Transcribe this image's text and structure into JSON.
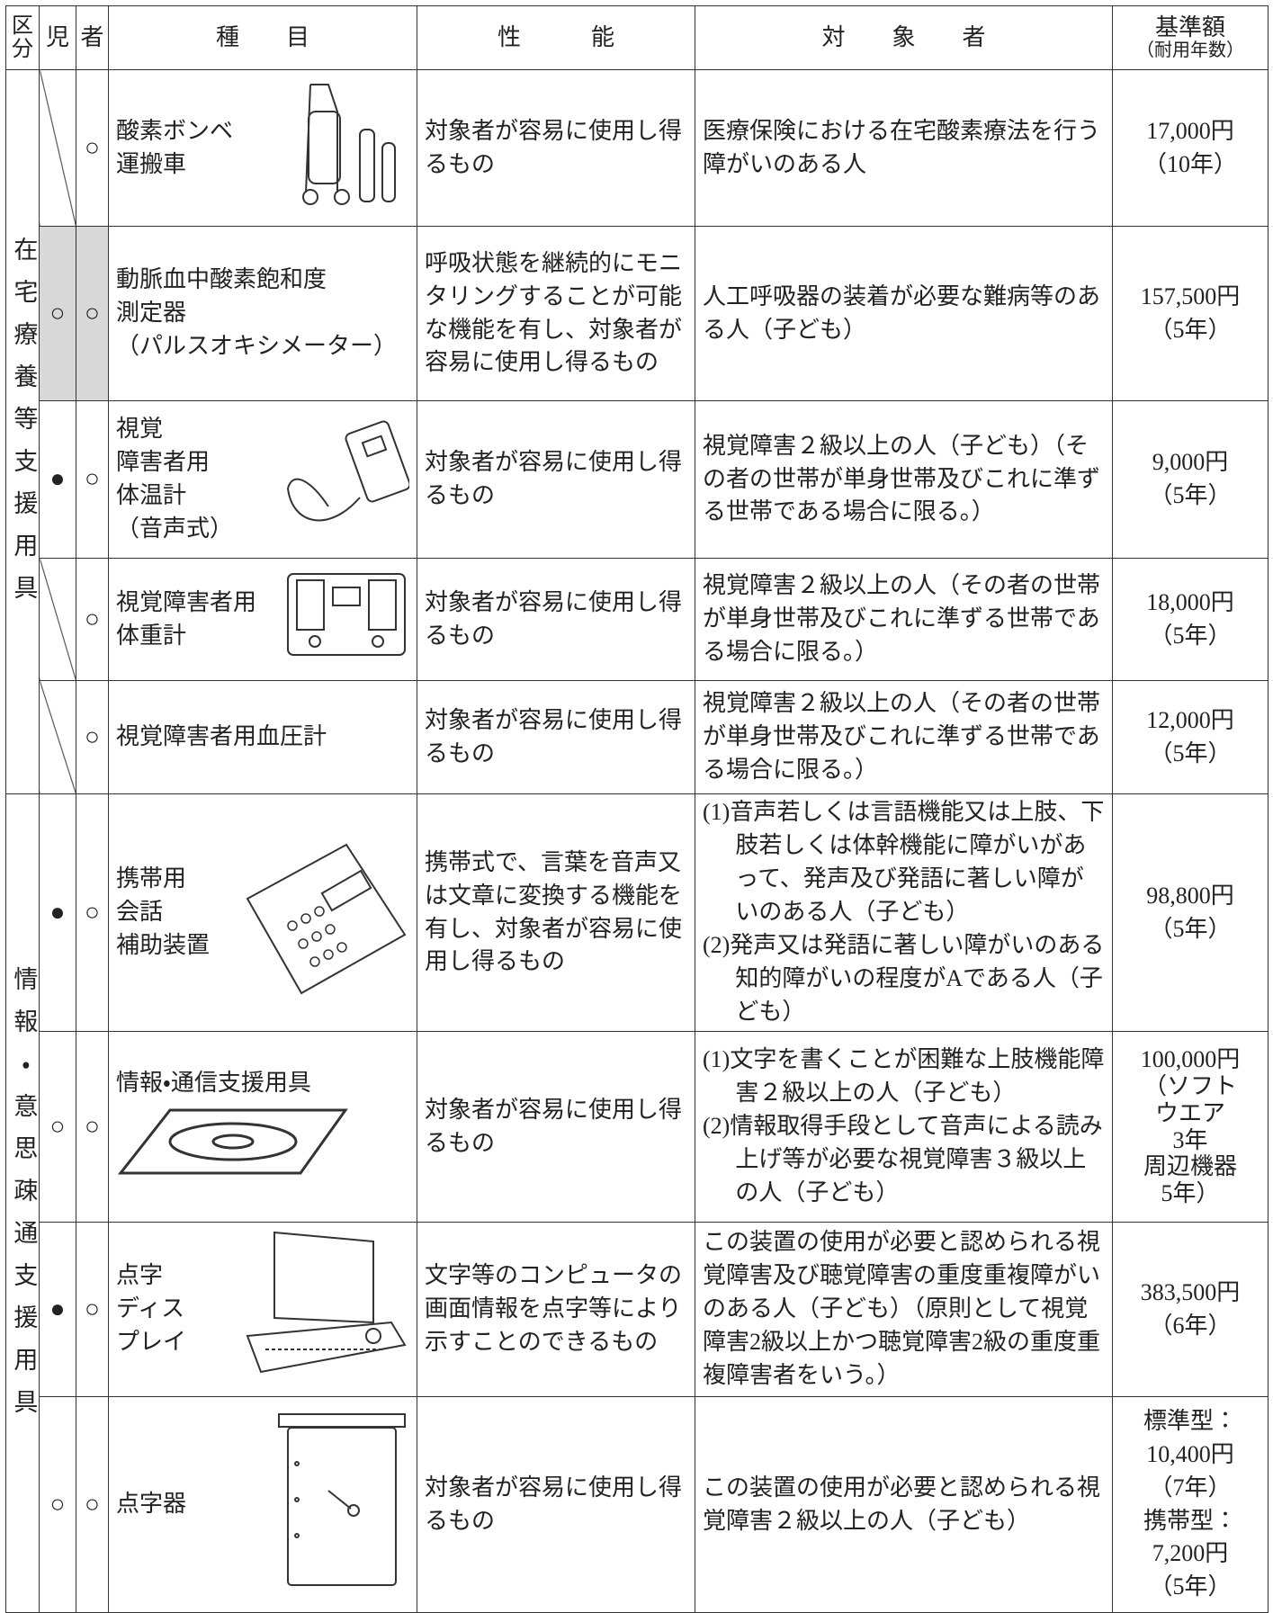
{
  "header": {
    "section": "区分",
    "child": "児",
    "adult": "者",
    "item": "種　　目",
    "performance": "性　　　能",
    "target": "対　　象　　者",
    "amount": "基準額",
    "amount_note": "（耐用年数）"
  },
  "sections": [
    {
      "label": "在宅療養等支援用具",
      "rows": [
        {
          "adult": "○",
          "item": "酸素ボンベ\n運搬車",
          "performance": "対象者が容易に使用し得るもの",
          "target": "医療保険における在宅酸素療法を行う障がいのある人",
          "amount": "17,000円\n（10年）"
        },
        {
          "child": "○",
          "adult": "○",
          "shaded": true,
          "item": "動脈血中酸素飽和度\n測定器\n（パルスオキシメーター）",
          "performance": "呼吸状態を継続的にモニタリングすることが可能な機能を有し、対象者が容易に使用し得るもの",
          "target": "人工呼吸器の装着が必要な難病等のある人（子ども）",
          "amount": "157,500円\n（5年）"
        },
        {
          "child": "●",
          "adult": "○",
          "item": "視覚\n障害者用\n体温計\n（音声式）",
          "performance": "対象者が容易に使用し得るもの",
          "target": "視覚障害２級以上の人（子ども）（その者の世帯が単身世帯及びこれに準ずる世帯である場合に限る。）",
          "amount": "9,000円\n（5年）"
        },
        {
          "adult": "○",
          "item": "視覚障害者用\n体重計",
          "performance": "対象者が容易に使用し得るもの",
          "target": "視覚障害２級以上の人（その者の世帯が単身世帯及びこれに準ずる世帯である場合に限る。）",
          "amount": "18,000円\n（5年）"
        },
        {
          "adult": "○",
          "item": "視覚障害者用血圧計",
          "performance": "対象者が容易に使用し得るもの",
          "target": "視覚障害２級以上の人（その者の世帯が単身世帯及びこれに準ずる世帯である場合に限る。）",
          "amount": "12,000円\n（5年）"
        }
      ]
    },
    {
      "label": "情報・意思疎通支援用具",
      "rows": [
        {
          "child": "●",
          "adult": "○",
          "item": "携帯用\n会話\n補助装置",
          "performance": "携帯式で、言葉を音声又は文章に変換する機能を有し、対象者が容易に使用し得るもの",
          "target": [
            "(1)音声若しくは言語機能又は上肢、下肢若しくは体幹機能に障がいがあって、発声及び発語に著しい障がいのある人（子ども）",
            "(2)発声又は発語に著しい障がいのある知的障がいの程度がAである人（子ども）"
          ],
          "amount": "98,800円\n（5年）"
        },
        {
          "child": "○",
          "adult": "○",
          "item": "情報・通信支援用具",
          "performance": "対象者が容易に使用し得るもの",
          "target": [
            "(1)文字を書くことが困難な上肢機能障害２級以上の人（子ども）",
            "(2)情報取得手段として音声による読み上げ等が必要な視覚障害３級以上の人（子ども）"
          ],
          "amount": "100,000円\n（ソフト\nウエア\n3年\n周辺機器\n5年）"
        },
        {
          "child": "●",
          "adult": "○",
          "item": "点字\nディス\nプレイ",
          "performance": "文字等のコンピュータの画面情報を点字等により示すことのできるもの",
          "target": "この装置の使用が必要と認められる視覚障害及び聴覚障害の重度重複障がいのある人（子ども）（原則として視覚障害2級以上かつ聴覚障害2級の重度重複障害者をいう。）",
          "amount": "383,500円\n（6年）"
        },
        {
          "child": "○",
          "adult": "○",
          "item": "点字器",
          "performance": "対象者が容易に使用し得るもの",
          "target": "この装置の使用が必要と認められる視覚障害２級以上の人（子ども）",
          "amount": "標準型：\n10,400円\n（7年）\n携帯型：\n7,200円\n（5年）"
        }
      ]
    }
  ]
}
